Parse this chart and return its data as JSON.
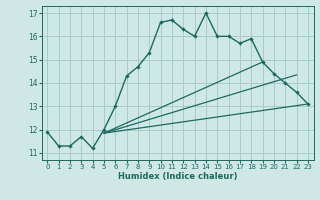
{
  "xlabel": "Humidex (Indice chaleur)",
  "bg_color": "#cde8e5",
  "line_color": "#1a6b60",
  "grid_color": "#a8ccca",
  "xlim": [
    -0.5,
    23.5
  ],
  "ylim": [
    10.7,
    17.3
  ],
  "yticks": [
    11,
    12,
    13,
    14,
    15,
    16,
    17
  ],
  "xticks": [
    0,
    1,
    2,
    3,
    4,
    5,
    6,
    7,
    8,
    9,
    10,
    11,
    12,
    13,
    14,
    15,
    16,
    17,
    18,
    19,
    20,
    21,
    22,
    23
  ],
  "line1_x": [
    0,
    1,
    2,
    3,
    4,
    5,
    6,
    7,
    8,
    9,
    10,
    11,
    12,
    13,
    14,
    15,
    16,
    17,
    18,
    19,
    20,
    21,
    22,
    23
  ],
  "line1_y": [
    11.9,
    11.3,
    11.3,
    11.7,
    11.2,
    12.0,
    13.0,
    14.3,
    14.7,
    15.3,
    16.6,
    16.7,
    16.3,
    16.0,
    17.0,
    16.0,
    16.0,
    15.7,
    15.9,
    14.9,
    14.4,
    14.0,
    13.6,
    13.1
  ],
  "line2_x": [
    5,
    19
  ],
  "line2_y": [
    11.85,
    14.9
  ],
  "line3_x": [
    5,
    22
  ],
  "line3_y": [
    11.85,
    14.35
  ],
  "line4_x": [
    5,
    23
  ],
  "line4_y": [
    11.85,
    13.1
  ]
}
